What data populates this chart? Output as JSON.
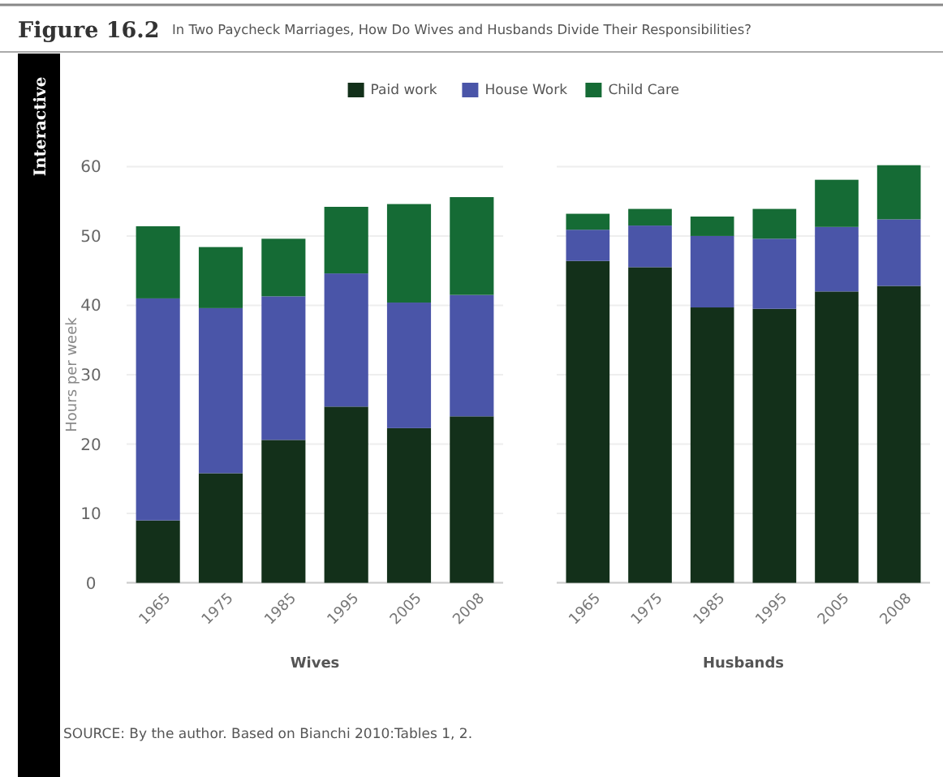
{
  "chart_data": [
    {
      "type": "bar",
      "title": "Figure 16.2",
      "subtitle": "In Two Paycheck Marriages, How Do Wives and Husbands Divide Their Responsibilities?",
      "xlabel": "Wives",
      "ylabel": "Hours per week",
      "annotations": [
        "Interactive",
        "SOURCE: By the author. Based on Bianchi 2010:Tables 1, 2."
      ],
      "categories": [
        "1965",
        "1975",
        "1985",
        "1995",
        "2005",
        "2008"
      ],
      "stacked": true,
      "ylim": [
        0,
        60
      ],
      "yticks": [
        0,
        10,
        20,
        30,
        40,
        50,
        60
      ],
      "grid": "y",
      "legend": "top",
      "series": [
        {
          "name": "Paid work",
          "color": "#13301a",
          "values": [
            9.0,
            15.8,
            20.6,
            25.4,
            22.3,
            24.0
          ]
        },
        {
          "name": "House Work",
          "color": "#4a55a8",
          "values": [
            32.0,
            23.8,
            20.7,
            19.2,
            18.1,
            17.5
          ]
        },
        {
          "name": "Child Care",
          "color": "#156b35",
          "values": [
            10.4,
            8.8,
            8.3,
            9.6,
            14.2,
            14.1
          ]
        }
      ]
    },
    {
      "type": "bar",
      "xlabel": "Husbands",
      "categories": [
        "1965",
        "1975",
        "1985",
        "1995",
        "2005",
        "2008"
      ],
      "stacked": true,
      "ylim": [
        0,
        60
      ],
      "yticks": [
        0,
        10,
        20,
        30,
        40,
        50,
        60
      ],
      "grid": "y",
      "tick_labels": "x",
      "series": [
        {
          "color": "#13301a",
          "values": [
            46.4,
            45.5,
            39.7,
            39.5,
            42.0,
            42.8
          ]
        },
        {
          "color": "#4a55a8",
          "values": [
            4.5,
            6.0,
            10.3,
            10.1,
            9.3,
            9.6
          ]
        },
        {
          "color": "#156b35",
          "values": [
            2.3,
            2.4,
            2.8,
            4.3,
            6.8,
            7.8
          ]
        }
      ]
    }
  ]
}
